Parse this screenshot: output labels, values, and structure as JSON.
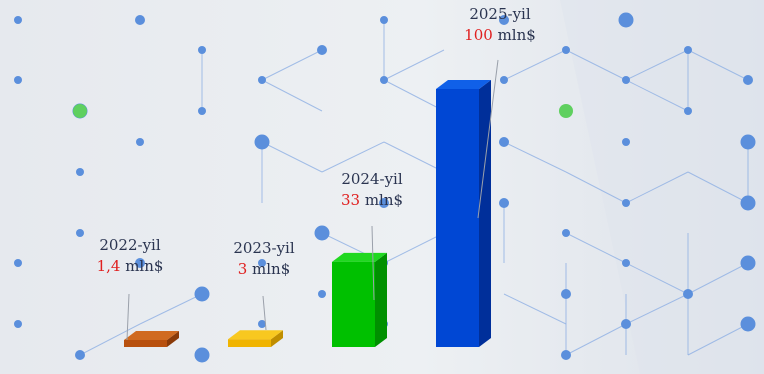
{
  "chart_data": {
    "type": "bar",
    "style": "3d-columns",
    "categories": [
      "2022-yil",
      "2023-yil",
      "2024-yil",
      "2025-yil"
    ],
    "values": [
      1.4,
      3,
      33,
      100
    ],
    "value_labels": [
      "1,4",
      "3",
      "33",
      "100"
    ],
    "unit": "mln$",
    "ylim": [
      0,
      100
    ],
    "grid": false,
    "legend": "none",
    "colors": [
      "#b8500e",
      "#f0b400",
      "#00c000",
      "#0047d4"
    ],
    "side_colors": [
      "#8a3a08",
      "#c08e00",
      "#009000",
      "#002f9a"
    ],
    "top_colors": [
      "#d06a20",
      "#f8c820",
      "#20d820",
      "#1060e8"
    ],
    "value_number_color": "#e02020",
    "text_color": "#2a3450"
  },
  "background": {
    "color": "#e9ecf0",
    "node_color": "#5b8fdc",
    "accent_node_color": "#5fd05f",
    "line_color": "#8fb0e4"
  }
}
